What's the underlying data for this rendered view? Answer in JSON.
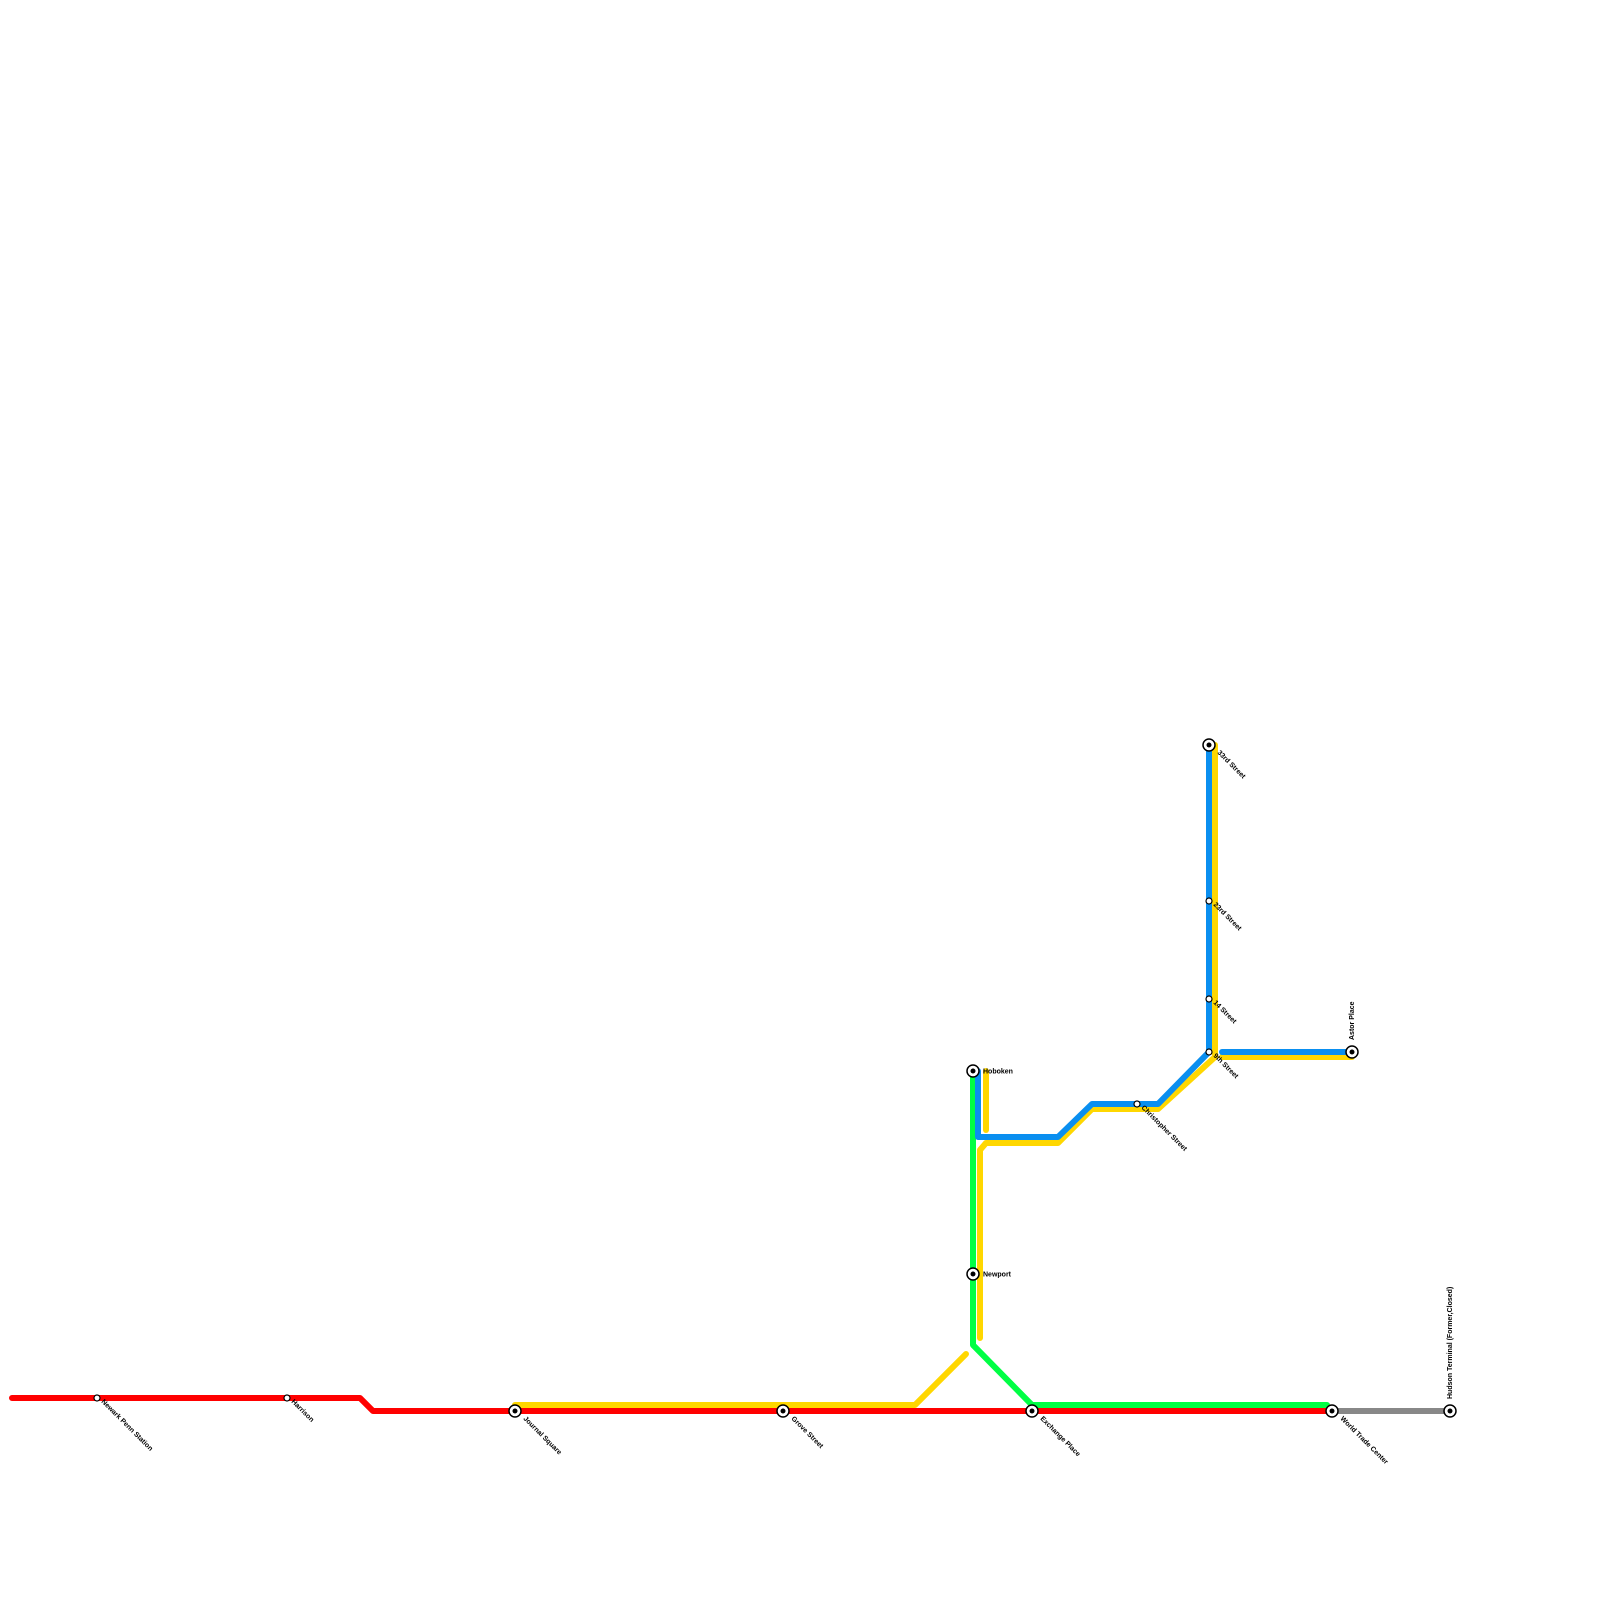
{
  "stations": [
    {
      "name": "Newark Penn Station"
    },
    {
      "name": "Harrison"
    },
    {
      "name": "Journal Square"
    },
    {
      "name": "Grove Street"
    },
    {
      "name": "Exchange Place"
    },
    {
      "name": "World Trade Center"
    },
    {
      "name": "Hudson Terminal (Former,Closed)"
    },
    {
      "name": "Newport"
    },
    {
      "name": "Hoboken"
    },
    {
      "name": "Christopher Street"
    },
    {
      "name": "9th Street"
    },
    {
      "name": "14 Street"
    },
    {
      "name": "23rd Street"
    },
    {
      "name": "33rd Street"
    },
    {
      "name": "Astor Place"
    }
  ]
}
